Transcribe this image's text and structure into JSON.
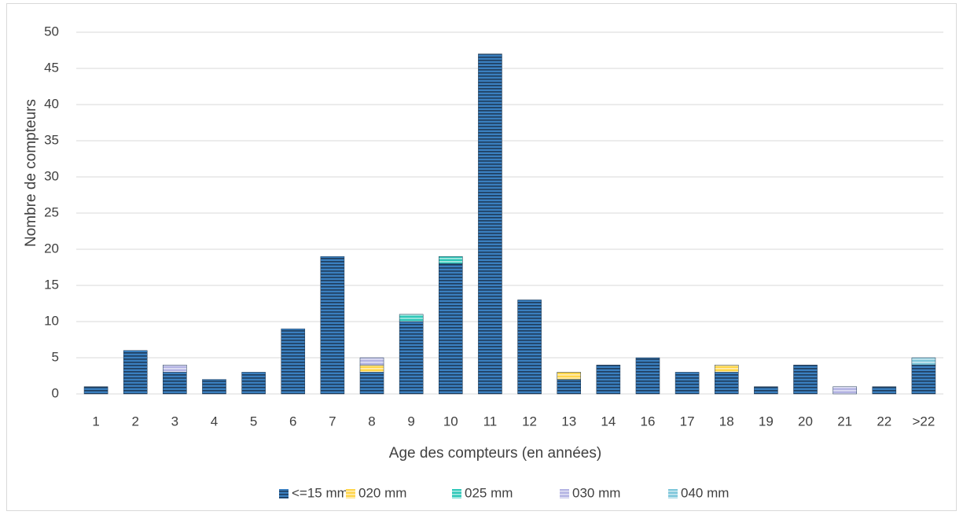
{
  "chart_data": {
    "type": "bar",
    "stacked": true,
    "x_label": "Age des compteurs (en années)",
    "y_label": "Nombre de compteurs",
    "categories": [
      "1",
      "2",
      "3",
      "4",
      "5",
      "6",
      "7",
      "8",
      "9",
      "10",
      "11",
      "12",
      "13",
      "14",
      "16",
      "17",
      "18",
      "19",
      "20",
      "21",
      "22",
      ">22"
    ],
    "series": [
      {
        "name": "<=15 mm",
        "color": "#3a7fbf",
        "values": [
          1,
          6,
          3,
          2,
          3,
          9,
          19,
          3,
          10,
          18,
          47,
          13,
          2,
          4,
          5,
          3,
          3,
          1,
          4,
          0,
          1,
          4
        ]
      },
      {
        "name": "020 mm",
        "color": "#ffd54a",
        "values": [
          0,
          0,
          0,
          0,
          0,
          0,
          0,
          1,
          0,
          0,
          0,
          0,
          1,
          0,
          0,
          0,
          1,
          0,
          0,
          0,
          0,
          0
        ]
      },
      {
        "name": "025 mm",
        "color": "#2fc7b8",
        "values": [
          0,
          0,
          0,
          0,
          0,
          0,
          0,
          0,
          1,
          1,
          0,
          0,
          0,
          0,
          0,
          0,
          0,
          0,
          0,
          0,
          0,
          0
        ]
      },
      {
        "name": "030 mm",
        "color": "#b3b3e3",
        "values": [
          0,
          0,
          1,
          0,
          0,
          0,
          0,
          1,
          0,
          0,
          0,
          0,
          0,
          0,
          0,
          0,
          0,
          0,
          0,
          1,
          0,
          0
        ]
      },
      {
        "name": "040 mm",
        "color": "#7cc6da",
        "values": [
          0,
          0,
          0,
          0,
          0,
          0,
          0,
          0,
          0,
          0,
          0,
          0,
          0,
          0,
          0,
          0,
          0,
          0,
          0,
          0,
          0,
          1
        ]
      }
    ],
    "ylim": [
      0,
      50
    ],
    "yticks": [
      0,
      5,
      10,
      15,
      20,
      25,
      30,
      35,
      40,
      45,
      50
    ],
    "grid": true,
    "legend": "bottom"
  }
}
